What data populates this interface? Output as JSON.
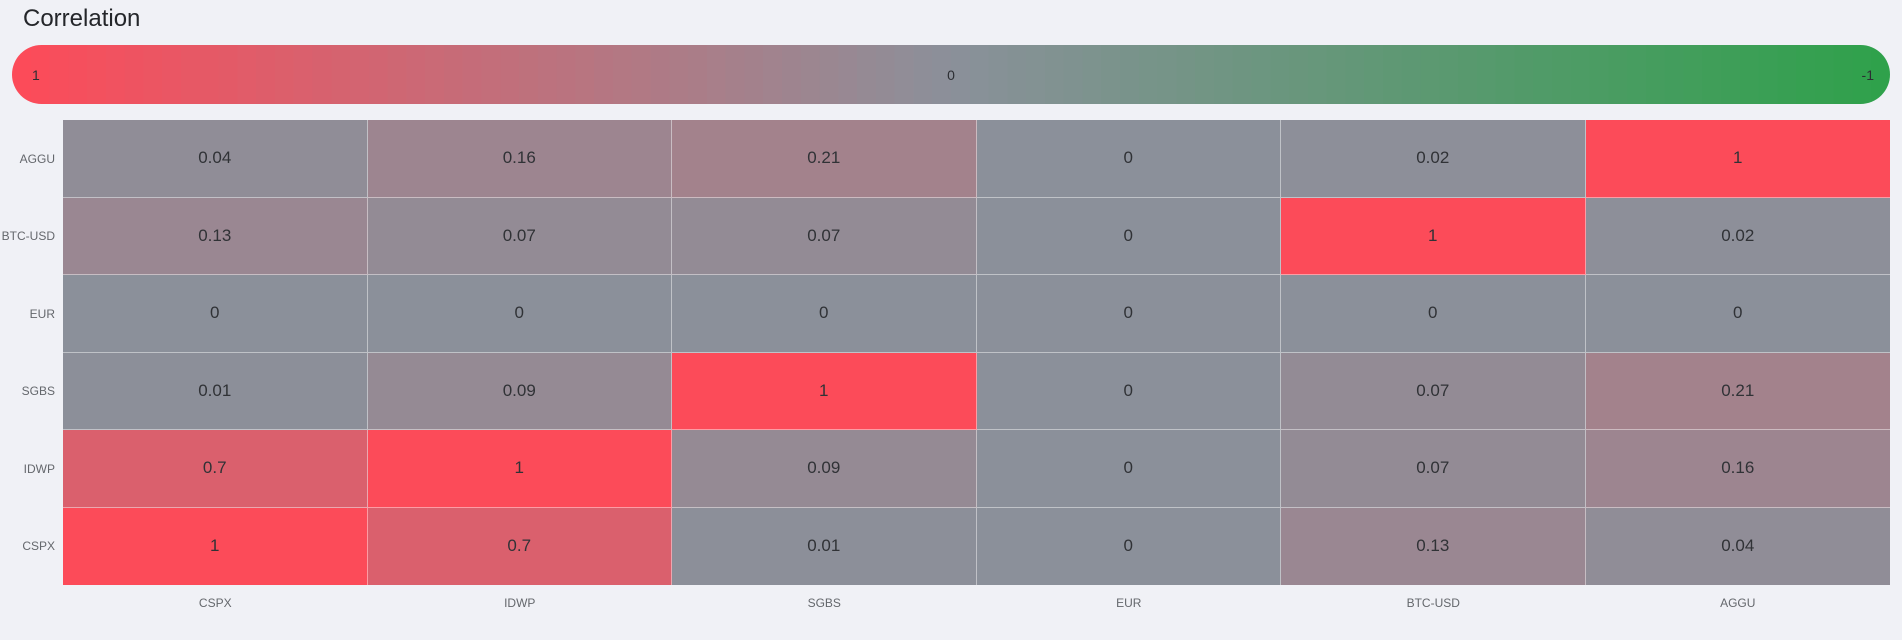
{
  "title": "Correlation",
  "legend": {
    "left_label": "1",
    "center_label": "0",
    "right_label": "-1"
  },
  "colors": {
    "background": "#F0F1F6",
    "title_text": "#24262A",
    "cell_text": "#303236",
    "axis_label_text": "#64676C",
    "max_color": "#FC4B59",
    "mid_color": "#8B909A",
    "min_color": "#2FA14B"
  },
  "chart_data": {
    "type": "heatmap",
    "title": "Correlation",
    "rows": [
      "AGGU",
      "BTC-USD",
      "EUR",
      "SGBS",
      "IDWP",
      "CSPX"
    ],
    "columns": [
      "CSPX",
      "IDWP",
      "SGBS",
      "EUR",
      "BTC-USD",
      "AGGU"
    ],
    "values": [
      [
        0.04,
        0.16,
        0.21,
        0,
        0.02,
        1
      ],
      [
        0.13,
        0.07,
        0.07,
        0,
        1,
        0.02
      ],
      [
        0,
        0,
        0,
        0,
        0,
        0
      ],
      [
        0.01,
        0.09,
        1,
        0,
        0.07,
        0.21
      ],
      [
        0.7,
        1,
        0.09,
        0,
        0.07,
        0.16
      ],
      [
        1,
        0.7,
        0.01,
        0,
        0.13,
        0.04
      ]
    ],
    "scale": {
      "max": 1,
      "mid": 0,
      "min": -1
    },
    "legend_position": "top",
    "legend_labels": [
      "1",
      "0",
      "-1"
    ],
    "color_mapping": {
      "value_1": "#FC4B59",
      "value_0": "#8B909A",
      "value_-1": "#2FA14B"
    },
    "grid": false
  }
}
